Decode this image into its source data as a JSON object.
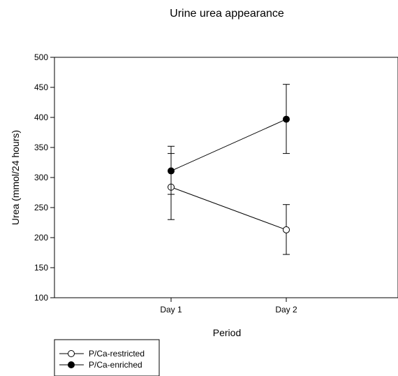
{
  "chart_data": {
    "type": "line",
    "title": "Urine urea appearance",
    "xlabel": "Period",
    "ylabel": "Urea (mmol/24 hours)",
    "categories": [
      "Day 1",
      "Day 2"
    ],
    "ylim": [
      100,
      500
    ],
    "yticks": [
      100,
      150,
      200,
      250,
      300,
      350,
      400,
      450,
      500
    ],
    "grid": false,
    "legend_position": "bottom-left",
    "series": [
      {
        "name": "P/Ca-restricted",
        "marker": "open-circle",
        "values": [
          284,
          213
        ],
        "error_low": [
          230,
          172
        ],
        "error_high": [
          340,
          255
        ]
      },
      {
        "name": "P/Ca-enriched",
        "marker": "filled-circle",
        "values": [
          311,
          397
        ],
        "error_low": [
          272,
          340
        ],
        "error_high": [
          352,
          455
        ]
      }
    ]
  }
}
